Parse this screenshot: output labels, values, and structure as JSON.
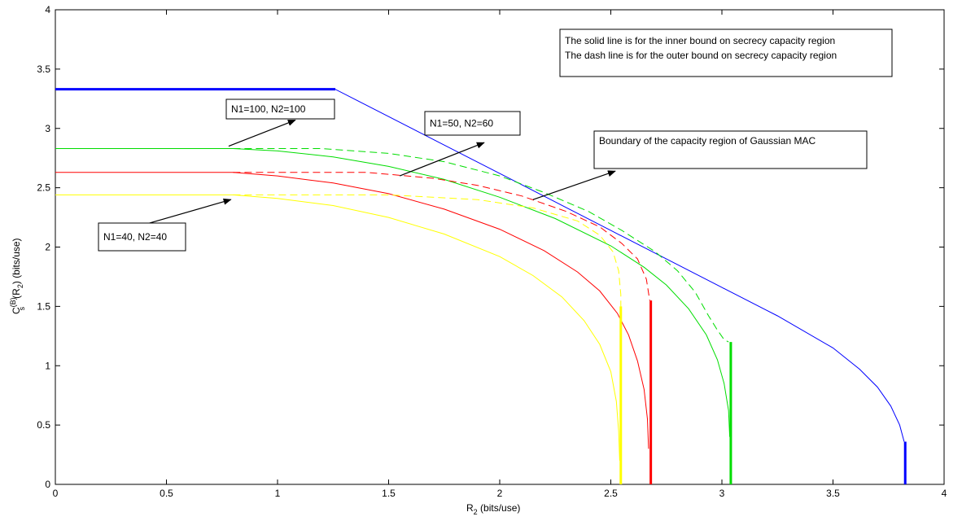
{
  "chart_data": {
    "type": "line",
    "xlabel": "R",
    "xlabel_sub": "2",
    "xlabel_unit": " (bits/use)",
    "ylabel_parts": {
      "C": "C",
      "sup": "(B)",
      "sub": "s",
      "mid": "(R",
      "sub2": "2",
      "tail": ") (bits/use)"
    },
    "xlim": [
      0,
      4
    ],
    "ylim": [
      0,
      4
    ],
    "xticks": [
      "0",
      "0.5",
      "1",
      "1.5",
      "2",
      "2.5",
      "3",
      "3.5",
      "4"
    ],
    "yticks": [
      "0",
      "0.5",
      "1",
      "1.5",
      "2",
      "2.5",
      "3",
      "3.5",
      "4"
    ],
    "grid": false,
    "legend_box": {
      "line1": "The solid line is for the inner bound on secrecy capacity region",
      "line2": "The dash line is for the outer bound on secrecy capacity region"
    },
    "annotations": [
      {
        "id": "ann-100-100",
        "text": "N1=100, N2=100",
        "arrow_from": [
          0.78,
          2.85
        ],
        "arrow_to": [
          1.08,
          3.07
        ]
      },
      {
        "id": "ann-50-60",
        "text": "N1=50, N2=60",
        "arrow_from": [
          1.55,
          2.6
        ],
        "arrow_to": [
          1.93,
          2.88
        ]
      },
      {
        "id": "ann-gauss",
        "text": "Boundary of the capacity region of Gaussian MAC",
        "arrow_from": [
          2.15,
          2.4
        ],
        "arrow_to": [
          2.52,
          2.64
        ]
      },
      {
        "id": "ann-40-40",
        "text": "N1=40, N2=40",
        "arrow_from": [
          0.42,
          2.2
        ],
        "arrow_to": [
          0.79,
          2.4
        ]
      }
    ],
    "series": [
      {
        "style": "solid",
        "color": "#0000ff",
        "role": "gaussian-mac",
        "points": [
          [
            0,
            3.33
          ],
          [
            1.26,
            3.33
          ],
          [
            1.5,
            3.1
          ],
          [
            1.75,
            2.86
          ],
          [
            2.0,
            2.62
          ],
          [
            2.25,
            2.38
          ],
          [
            2.5,
            2.14
          ],
          [
            2.75,
            1.9
          ],
          [
            3.0,
            1.66
          ],
          [
            3.25,
            1.42
          ],
          [
            3.5,
            1.15
          ],
          [
            3.62,
            0.97
          ],
          [
            3.7,
            0.82
          ],
          [
            3.76,
            0.66
          ],
          [
            3.8,
            0.5
          ],
          [
            3.82,
            0.36
          ]
        ],
        "thick_segments": [
          [
            [
              0,
              3.33
            ],
            [
              1.26,
              3.33
            ]
          ]
        ],
        "vertical_bar": [
          3.825,
          0,
          0.36
        ]
      },
      {
        "style": "solid",
        "color": "#00dd00",
        "role": "inner-100-100",
        "points": [
          [
            0,
            2.83
          ],
          [
            0.8,
            2.83
          ],
          [
            1.0,
            2.81
          ],
          [
            1.25,
            2.76
          ],
          [
            1.5,
            2.68
          ],
          [
            1.75,
            2.57
          ],
          [
            2.0,
            2.42
          ],
          [
            2.25,
            2.24
          ],
          [
            2.5,
            2.01
          ],
          [
            2.65,
            1.83
          ],
          [
            2.75,
            1.68
          ],
          [
            2.85,
            1.48
          ],
          [
            2.93,
            1.26
          ],
          [
            2.98,
            1.05
          ],
          [
            3.01,
            0.85
          ],
          [
            3.03,
            0.62
          ],
          [
            3.035,
            0.4
          ]
        ],
        "vertical_bar": [
          3.04,
          0,
          1.2
        ]
      },
      {
        "style": "dashed",
        "color": "#00dd00",
        "role": "outer-100-100",
        "points": [
          [
            0.8,
            2.83
          ],
          [
            1.2,
            2.83
          ],
          [
            1.5,
            2.79
          ],
          [
            1.75,
            2.72
          ],
          [
            2.0,
            2.6
          ],
          [
            2.2,
            2.46
          ],
          [
            2.4,
            2.3
          ],
          [
            2.55,
            2.14
          ],
          [
            2.7,
            1.96
          ],
          [
            2.8,
            1.8
          ],
          [
            2.88,
            1.62
          ],
          [
            2.94,
            1.42
          ],
          [
            2.98,
            1.3
          ],
          [
            3.01,
            1.22
          ],
          [
            3.03,
            1.2
          ]
        ]
      },
      {
        "style": "solid",
        "color": "#ff0000",
        "role": "inner-50-60",
        "points": [
          [
            0,
            2.63
          ],
          [
            0.8,
            2.63
          ],
          [
            1.0,
            2.6
          ],
          [
            1.25,
            2.54
          ],
          [
            1.5,
            2.45
          ],
          [
            1.75,
            2.32
          ],
          [
            2.0,
            2.15
          ],
          [
            2.2,
            1.97
          ],
          [
            2.35,
            1.79
          ],
          [
            2.45,
            1.63
          ],
          [
            2.53,
            1.44
          ],
          [
            2.58,
            1.26
          ],
          [
            2.62,
            1.04
          ],
          [
            2.65,
            0.8
          ],
          [
            2.665,
            0.55
          ],
          [
            2.67,
            0.3
          ]
        ],
        "vertical_bar": [
          2.68,
          0,
          1.55
        ]
      },
      {
        "style": "dashed",
        "color": "#ff0000",
        "role": "outer-50-60",
        "points": [
          [
            0.8,
            2.63
          ],
          [
            1.4,
            2.63
          ],
          [
            1.7,
            2.58
          ],
          [
            1.9,
            2.52
          ],
          [
            2.1,
            2.43
          ],
          [
            2.3,
            2.3
          ],
          [
            2.45,
            2.17
          ],
          [
            2.55,
            2.03
          ],
          [
            2.62,
            1.9
          ],
          [
            2.66,
            1.73
          ],
          [
            2.675,
            1.55
          ]
        ]
      },
      {
        "style": "solid",
        "color": "#ffff00",
        "role": "inner-40-40",
        "points": [
          [
            0,
            2.44
          ],
          [
            0.8,
            2.44
          ],
          [
            1.0,
            2.41
          ],
          [
            1.25,
            2.35
          ],
          [
            1.5,
            2.25
          ],
          [
            1.75,
            2.11
          ],
          [
            2.0,
            1.92
          ],
          [
            2.15,
            1.76
          ],
          [
            2.28,
            1.58
          ],
          [
            2.38,
            1.38
          ],
          [
            2.45,
            1.18
          ],
          [
            2.5,
            0.95
          ],
          [
            2.525,
            0.7
          ],
          [
            2.535,
            0.45
          ],
          [
            2.54,
            0.2
          ]
        ],
        "vertical_bar": [
          2.545,
          0,
          1.5
        ]
      },
      {
        "style": "dashed",
        "color": "#ffff00",
        "role": "outer-40-40",
        "points": [
          [
            0.8,
            2.44
          ],
          [
            1.5,
            2.44
          ],
          [
            1.9,
            2.4
          ],
          [
            2.15,
            2.33
          ],
          [
            2.35,
            2.22
          ],
          [
            2.45,
            2.1
          ],
          [
            2.51,
            1.96
          ],
          [
            2.535,
            1.8
          ],
          [
            2.545,
            1.6
          ],
          [
            2.545,
            1.5
          ]
        ]
      }
    ]
  }
}
